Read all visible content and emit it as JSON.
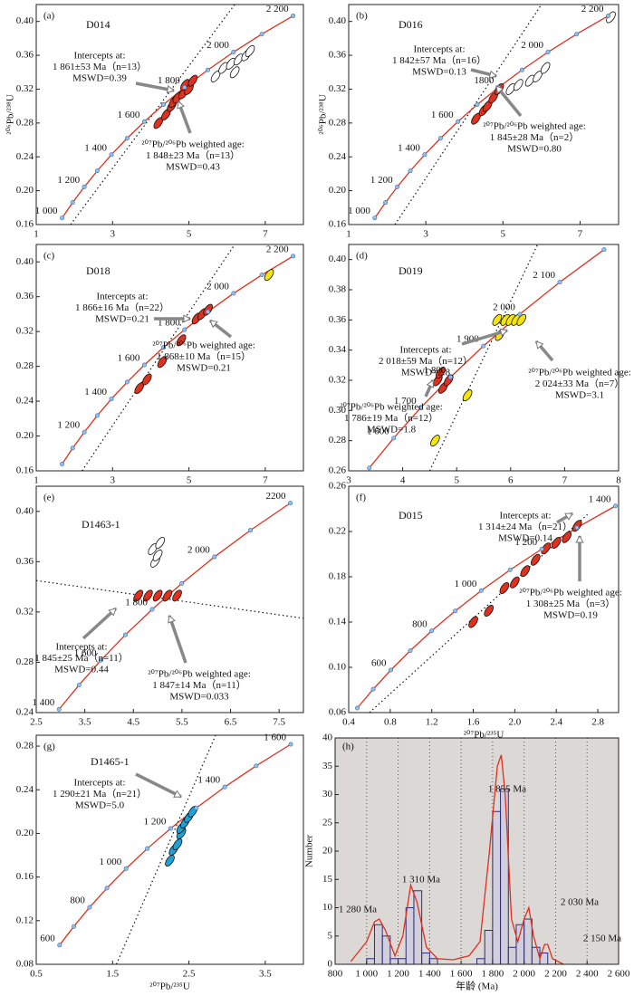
{
  "chart_data": [
    {
      "type": "concordia",
      "tag": "(a)",
      "sample": "D014",
      "ylabel": "²⁰⁶Pb/²³⁸U",
      "xlim": [
        1,
        8
      ],
      "ylim": [
        0.16,
        0.42
      ],
      "xticks": [
        1,
        3,
        5,
        7
      ],
      "yticks": [
        0.16,
        {
          "value": 0.2,
          "label": "0.20"
        },
        0.24,
        0.28,
        0.32,
        0.36,
        {
          "value": 0.4,
          "label": "0.40"
        }
      ],
      "concordia": {
        "labels": [
          "1 000",
          null,
          "1 200",
          null,
          "1 400",
          null,
          "1 600",
          null,
          "1 800",
          null,
          "2 000",
          null,
          "2 200"
        ],
        "x": [
          1.677,
          1.955,
          2.26,
          2.598,
          2.97,
          3.381,
          3.834,
          4.335,
          4.886,
          5.496,
          6.169,
          6.91,
          7.73
        ],
        "y": [
          0.1678,
          0.1861,
          0.2045,
          0.2234,
          0.2426,
          0.2619,
          0.2817,
          0.3018,
          0.3221,
          0.3427,
          0.3638,
          0.385,
          0.4066
        ]
      },
      "discordia": {
        "x": [
          1.9,
          6.2
        ],
        "y": [
          0.16,
          0.42
        ]
      },
      "series": [
        {
          "color": "#e0301e",
          "x": [
            4.2,
            4.4,
            4.55,
            4.6,
            4.7,
            4.85,
            4.9,
            5.0,
            5.1
          ],
          "y": [
            0.28,
            0.29,
            0.3,
            0.305,
            0.31,
            0.315,
            0.325,
            0.32,
            0.33
          ]
        },
        {
          "color": "#ffffff",
          "x": [
            5.7,
            5.9,
            6.1,
            6.2,
            6.3,
            6.5,
            6.6
          ],
          "y": [
            0.335,
            0.345,
            0.35,
            0.34,
            0.355,
            0.36,
            0.365
          ]
        }
      ],
      "annotations": [
        [
          "Intercepts at:",
          "1 861±53 Ma（n=13）",
          "MSWD=0.39"
        ],
        [
          "²⁰⁷Pb/²⁰⁶Pb weighted age:",
          "1 848±23 Ma（n=13）",
          "MSWD=0.43"
        ]
      ]
    },
    {
      "type": "concordia",
      "tag": "(b)",
      "sample": "D016",
      "ylabel": "²⁰⁶Pb/²³⁸U",
      "xlim": [
        1,
        8
      ],
      "ylim": [
        0.16,
        0.42
      ],
      "xticks": [
        1,
        3,
        5,
        7
      ],
      "yticks": [
        0.16,
        {
          "value": 0.2,
          "label": "0.20"
        },
        0.24,
        0.28,
        0.32,
        0.36,
        {
          "value": 0.4,
          "label": "0.40"
        }
      ],
      "concordia": {
        "labels": [
          "1 000",
          null,
          "1 200",
          null,
          "1 400",
          null,
          "1 600",
          null,
          "1800",
          null,
          "2 000",
          null,
          "2 200"
        ],
        "x": [
          1.677,
          1.955,
          2.26,
          2.598,
          2.97,
          3.381,
          3.834,
          4.335,
          4.886,
          5.496,
          6.169,
          6.91,
          7.73
        ],
        "y": [
          0.1678,
          0.1861,
          0.2045,
          0.2234,
          0.2426,
          0.2619,
          0.2817,
          0.3018,
          0.3221,
          0.3427,
          0.3638,
          0.385,
          0.4066
        ]
      },
      "discordia": {
        "x": [
          2.2,
          6.0
        ],
        "y": [
          0.16,
          0.42
        ]
      },
      "series": [
        {
          "color": "#e0301e",
          "x": [
            4.3,
            4.5,
            4.6,
            4.75,
            4.9
          ],
          "y": [
            0.285,
            0.295,
            0.3,
            0.31,
            0.32
          ]
        },
        {
          "color": "#ffffff",
          "x": [
            5.2,
            5.4,
            5.7,
            5.9,
            6.1,
            7.8
          ],
          "y": [
            0.32,
            0.325,
            0.33,
            0.335,
            0.345,
            0.405
          ]
        }
      ],
      "annotations": [
        [
          "Intercepts at:",
          "1 842±57 Ma（n=16）",
          "MSWD=0.13"
        ],
        [
          "²⁰⁷Pb/²⁰⁶Pb weighted age:",
          "1 845±28 Ma（n=2）",
          "MSWD=0.80"
        ]
      ]
    },
    {
      "type": "concordia",
      "tag": "(c)",
      "sample": "D018",
      "xlim": [
        1,
        8
      ],
      "ylim": [
        0.16,
        0.42
      ],
      "xticks": [
        1,
        3,
        5,
        7
      ],
      "yticks": [
        0.16,
        {
          "value": 0.2,
          "label": "0.20"
        },
        0.24,
        0.28,
        0.32,
        0.36,
        {
          "value": 0.4,
          "label": "0.40"
        }
      ],
      "concordia": {
        "labels": [
          null,
          null,
          "1 200",
          null,
          "1 400",
          null,
          "1 600",
          null,
          "1 800",
          null,
          "2 000",
          null,
          "2 200"
        ],
        "x": [
          1.677,
          1.955,
          2.26,
          2.598,
          2.97,
          3.381,
          3.834,
          4.335,
          4.886,
          5.496,
          6.169,
          6.91,
          7.73
        ],
        "y": [
          0.1678,
          0.1861,
          0.2045,
          0.2234,
          0.2426,
          0.2619,
          0.2817,
          0.3018,
          0.3221,
          0.3427,
          0.3638,
          0.385,
          0.4066
        ]
      },
      "discordia": {
        "x": [
          2.2,
          6.2
        ],
        "y": [
          0.16,
          0.42
        ]
      },
      "series": [
        {
          "color": "#e0301e",
          "x": [
            3.7,
            3.9,
            4.3,
            4.8,
            5.2,
            5.35,
            5.5
          ],
          "y": [
            0.255,
            0.265,
            0.285,
            0.31,
            0.335,
            0.34,
            0.345
          ]
        },
        {
          "color": "#f5e50a",
          "x": [
            7.1
          ],
          "y": [
            0.385
          ]
        }
      ],
      "annotations": [
        [
          "Intercepts at:",
          "1 866±16 Ma（n=22）",
          "MSWD=0.21"
        ],
        [
          "²⁰⁷Pb/²⁰⁶Pb weighted age:",
          "1 868±10 Ma（n=15）",
          "MSWD=0.21"
        ]
      ]
    },
    {
      "type": "concordia",
      "tag": "(d)",
      "sample": "D019",
      "xlim": [
        3,
        8
      ],
      "ylim": [
        0.26,
        0.41
      ],
      "xticks": [
        3,
        4,
        5,
        6,
        7,
        8
      ],
      "yticks": [
        0.26,
        0.28,
        {
          "value": 0.3,
          "label": "0.30"
        },
        0.32,
        0.34,
        0.36,
        0.38,
        {
          "value": 0.4,
          "label": "0.40"
        }
      ],
      "concordia": {
        "labels": [
          null,
          "1 600",
          "1 700",
          "1 800",
          "1 900",
          "2 000",
          "2 100",
          null
        ],
        "x": [
          3.381,
          3.834,
          4.335,
          4.886,
          5.496,
          6.169,
          6.91,
          7.73
        ],
        "y": [
          0.2619,
          0.2817,
          0.3018,
          0.3221,
          0.3427,
          0.3638,
          0.385,
          0.4066
        ]
      },
      "discordia": {
        "x": [
          4.5,
          6.5
        ],
        "y": [
          0.26,
          0.41
        ]
      },
      "series": [
        {
          "color": "#e0301e",
          "x": [
            4.65,
            4.7,
            4.75,
            4.85
          ],
          "y": [
            0.32,
            0.325,
            0.315,
            0.32
          ]
        },
        {
          "color": "#f5e50a",
          "x": [
            5.75,
            5.8,
            5.9,
            6.0,
            6.1,
            6.2,
            5.2,
            4.6
          ],
          "y": [
            0.36,
            0.35,
            0.36,
            0.36,
            0.36,
            0.36,
            0.31,
            0.28
          ]
        }
      ],
      "annotations": [
        [
          "Intercepts at:",
          "2 018±59 Ma（n=12）",
          "MSWD=2.8"
        ],
        [
          "²⁰⁷Pb/²⁰⁶Pb weighted age:",
          "1 786±19 Ma（n=12）",
          "MSWD=1.8"
        ],
        [
          "²⁰⁷Pb/²⁰⁶Pb weighted age:",
          "2 024±33 Ma（n=7）",
          "MSWD=3.1"
        ]
      ]
    },
    {
      "type": "concordia",
      "tag": "(e)",
      "sample": "D1463-1",
      "xlim": [
        2.5,
        8
      ],
      "ylim": [
        0.24,
        0.42
      ],
      "xticks": [
        2.5,
        3.5,
        4.5,
        5.5,
        6.5,
        7.5
      ],
      "yticks": [
        0.24,
        0.28,
        0.32,
        0.36,
        {
          "value": 0.4,
          "label": "0.40"
        }
      ],
      "concordia": {
        "labels": [
          "1 400",
          null,
          "1 600",
          null,
          "1 800",
          null,
          "2 000",
          null,
          "2200"
        ],
        "x": [
          2.97,
          3.381,
          3.834,
          4.335,
          4.886,
          5.496,
          6.169,
          6.91,
          7.73
        ],
        "y": [
          0.2426,
          0.2619,
          0.2817,
          0.3018,
          0.3221,
          0.3427,
          0.3638,
          0.385,
          0.4066
        ]
      },
      "discordia": {
        "x": [
          2.5,
          8
        ],
        "y": [
          0.345,
          0.315
        ]
      },
      "series": [
        {
          "color": "#e0301e",
          "x": [
            4.6,
            4.8,
            5.0,
            5.2,
            5.4
          ],
          "y": [
            0.333,
            0.333,
            0.333,
            0.333,
            0.333
          ]
        },
        {
          "color": "#ffffff",
          "x": [
            4.9,
            4.95,
            5.0,
            5.05
          ],
          "y": [
            0.37,
            0.36,
            0.365,
            0.375
          ]
        }
      ],
      "annotations": [
        [
          "Intercepts at:",
          "1 845±25 Ma（n=11）",
          "MSWD=0.44"
        ],
        [
          "²⁰⁷Pb/²⁰⁶Pb weighted age:",
          "1 847±14 Ma（n=11）",
          "MSWD=0.033"
        ]
      ]
    },
    {
      "type": "concordia",
      "tag": "(f)",
      "sample": "D015",
      "xlabel": "²⁰⁷Pb/²³⁵U",
      "xlim": [
        0.4,
        3.0
      ],
      "ylim": [
        0.06,
        0.26
      ],
      "xticks": [
        0.4,
        0.8,
        1.2,
        1.6,
        {
          "value": 2,
          "label": "2.0"
        },
        2.4,
        2.8
      ],
      "yticks": [
        0.06,
        {
          "value": 0.1,
          "label": "0.10"
        },
        0.14,
        0.18,
        0.22,
        0.26
      ],
      "concordia": {
        "labels": [
          null,
          null,
          "600",
          null,
          "800",
          null,
          "1 000",
          null,
          "1 200",
          null,
          "1 400"
        ],
        "x": [
          0.483,
          0.636,
          0.806,
          0.993,
          1.199,
          1.426,
          1.677,
          1.955,
          2.26,
          2.598,
          2.97
        ],
        "y": [
          0.064,
          0.0807,
          0.0976,
          0.1147,
          0.1322,
          0.1498,
          0.1678,
          0.1861,
          0.2045,
          0.2234,
          0.2426
        ]
      },
      "discordia": {
        "x": [
          0.6,
          2.7
        ],
        "y": [
          0.06,
          0.235
        ]
      },
      "series": [
        {
          "color": "#e0301e",
          "x": [
            1.6,
            1.75,
            1.9,
            2.0,
            2.1,
            2.2,
            2.3,
            2.4,
            2.5,
            2.6
          ],
          "y": [
            0.14,
            0.15,
            0.17,
            0.175,
            0.185,
            0.195,
            0.205,
            0.21,
            0.215,
            0.225
          ]
        }
      ],
      "annotations": [
        [
          "Intercepts at:",
          "1 314±24 Ma（n=21）",
          "MSWD=0.14"
        ],
        [
          "²⁰⁷Pb/²⁰⁶Pb weighted age:",
          "1 308±25 Ma（n=3）",
          "MSWD=0.19"
        ]
      ]
    },
    {
      "type": "concordia",
      "tag": "(g)",
      "sample": "D1465-1",
      "xlabel": "²⁰⁷Pb/²³⁵U",
      "xlim": [
        0.5,
        4.0
      ],
      "ylim": [
        0.08,
        0.29
      ],
      "xticks": [
        0.5,
        1.5,
        2.5,
        3.5
      ],
      "yticks": [
        0.08,
        0.12,
        0.16,
        {
          "value": 0.2,
          "label": "0.20"
        },
        0.24,
        0.28
      ],
      "concordia": {
        "labels": [
          "600",
          null,
          "800",
          null,
          "1 000",
          null,
          "1 200",
          null,
          "1 400",
          null,
          "1 600"
        ],
        "x": [
          0.806,
          0.993,
          1.199,
          1.426,
          1.677,
          1.955,
          2.26,
          2.598,
          2.97,
          3.381,
          3.834
        ],
        "y": [
          0.0976,
          0.1147,
          0.1322,
          0.1498,
          0.1678,
          0.1861,
          0.2045,
          0.2234,
          0.2426,
          0.2619,
          0.2817
        ]
      },
      "discordia": {
        "x": [
          1.55,
          2.85
        ],
        "y": [
          0.08,
          0.29
        ]
      },
      "series": [
        {
          "color": "#1ea0d8",
          "x": [
            2.25,
            2.3,
            2.35,
            2.4,
            2.4,
            2.45,
            2.5,
            2.55
          ],
          "y": [
            0.175,
            0.185,
            0.19,
            0.2,
            0.205,
            0.21,
            0.215,
            0.22
          ]
        }
      ],
      "annotations": [
        [
          "Intercepts at:",
          "1 290±21 Ma（n=21）",
          "MSWD=5.0"
        ]
      ]
    },
    {
      "type": "histogram",
      "tag": "(h)",
      "xlabel": "年龄 (Ma)",
      "ylabel": "Number",
      "color": "#2b2f7a",
      "curve_color": "#e0301e",
      "xlim": [
        800,
        2600
      ],
      "ylim": [
        0,
        40
      ],
      "xticks": [
        800,
        {
          "value": 1000,
          "label": "1 000"
        },
        {
          "value": 1200,
          "label": "1 200"
        },
        {
          "value": 1400,
          "label": "1 400"
        },
        {
          "value": 1600,
          "label": "1 600"
        },
        {
          "value": 1800,
          "label": "1 800"
        },
        {
          "value": 2000,
          "label": "2 000"
        },
        {
          "value": 2200,
          "label": "2 200"
        },
        {
          "value": 2400,
          "label": "2 400"
        },
        {
          "value": 2600,
          "label": "2 600"
        }
      ],
      "yticks": [
        0,
        5,
        10,
        15,
        20,
        25,
        30,
        35,
        40
      ],
      "grid": true,
      "bins": [
        1000,
        1050,
        1100,
        1150,
        1200,
        1250,
        1300,
        1350,
        1400,
        1450,
        1500,
        1550,
        1600,
        1650,
        1700,
        1750,
        1800,
        1850,
        1900,
        1950,
        2000,
        2050,
        2100,
        2150
      ],
      "counts": [
        1,
        7,
        5,
        1,
        1,
        10,
        13,
        2,
        1,
        0,
        0,
        0,
        0,
        0,
        1,
        6,
        27,
        31,
        3,
        7,
        8,
        3,
        2
      ],
      "curve": {
        "x": [
          900,
          1000,
          1050,
          1080,
          1120,
          1180,
          1230,
          1280,
          1320,
          1380,
          1450,
          1550,
          1650,
          1720,
          1780,
          1830,
          1855,
          1880,
          1920,
          1960,
          2000,
          2030,
          2060,
          2100,
          2130,
          2150,
          2180,
          2250
        ],
        "y": [
          0.5,
          4,
          7.5,
          8,
          6,
          1.5,
          5,
          14,
          11,
          3,
          1,
          0.8,
          1.5,
          4,
          20,
          35,
          37,
          30,
          8,
          4,
          8,
          10,
          5,
          1,
          3.5,
          3.5,
          1,
          0
        ]
      },
      "peaks": [
        "1 280 Ma",
        "1 310 Ma",
        "1 855 Ma",
        "2 030 Ma",
        "2 150 Ma"
      ]
    }
  ]
}
